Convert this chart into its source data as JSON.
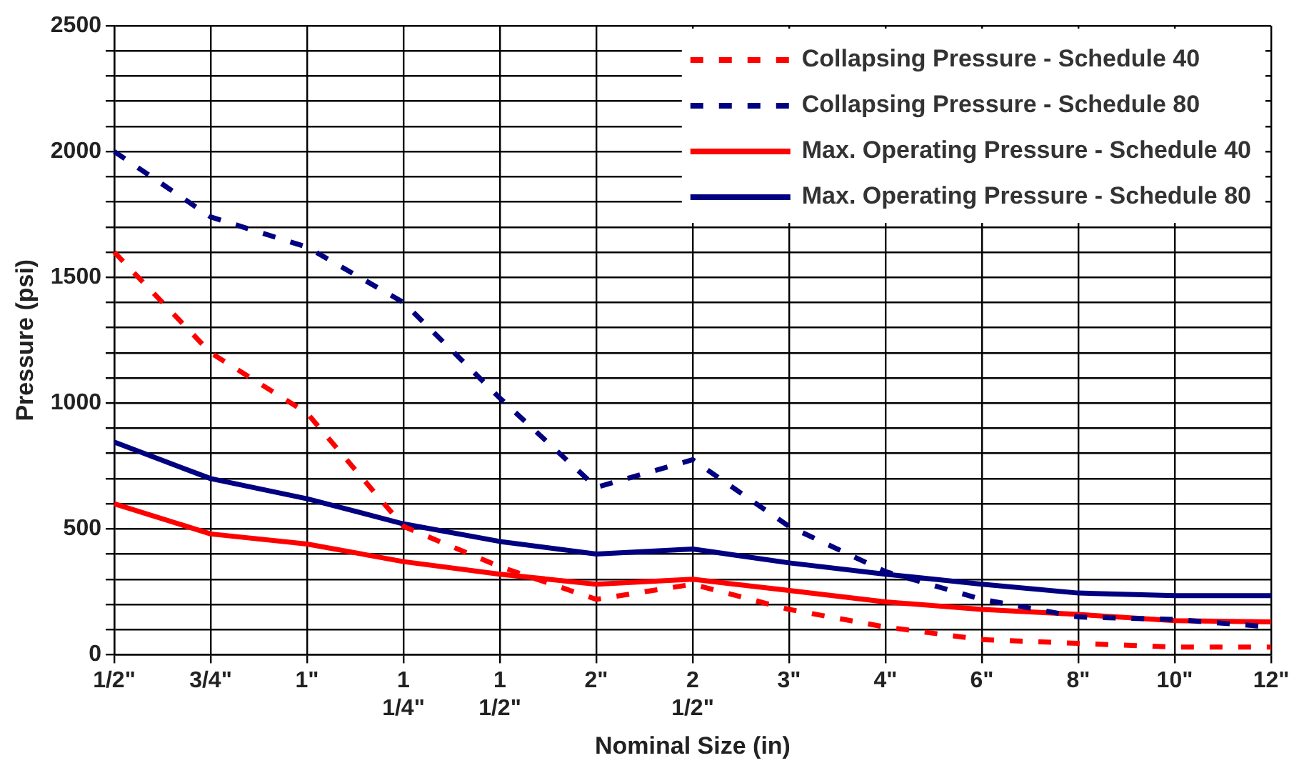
{
  "chart_data": {
    "type": "line",
    "xlabel": "Nominal Size (in)",
    "ylabel": "Pressure (psi)",
    "categories": [
      "1/2\"",
      "3/4\"",
      "1\"",
      "1 1/4\"",
      "1 1/2\"",
      "2\"",
      "2 1/2\"",
      "3\"",
      "4\"",
      "6\"",
      "8\"",
      "10\"",
      "12\""
    ],
    "series": [
      {
        "name": "Collapsing Pressure - Schedule 40",
        "color": "#ff0000",
        "line_style": "dashed",
        "values": [
          1600,
          1200,
          960,
          510,
          350,
          220,
          280,
          180,
          110,
          60,
          45,
          30,
          30
        ]
      },
      {
        "name": "Collapsing Pressure - Schedule 80",
        "color": "#000080",
        "line_style": "dashed",
        "values": [
          2000,
          1740,
          1620,
          1400,
          1020,
          665,
          775,
          510,
          330,
          220,
          150,
          140,
          110
        ]
      },
      {
        "name": "Max. Operating Pressure - Schedule 40",
        "color": "#ff0000",
        "line_style": "solid",
        "values": [
          600,
          480,
          440,
          370,
          320,
          280,
          300,
          255,
          210,
          180,
          160,
          135,
          130
        ]
      },
      {
        "name": "Max. Operating Pressure - Schedule 80",
        "color": "#000080",
        "line_style": "solid",
        "values": [
          845,
          700,
          620,
          520,
          450,
          400,
          420,
          365,
          320,
          280,
          245,
          235,
          235
        ]
      }
    ],
    "ylim": [
      0,
      2500
    ],
    "yticks": [
      0,
      {
        "value": 100,
        "label": null
      },
      {
        "value": 200,
        "label": null
      },
      {
        "value": 300,
        "label": null
      },
      {
        "value": 400,
        "label": null
      },
      500,
      {
        "value": 600,
        "label": null
      },
      {
        "value": 700,
        "label": null
      },
      {
        "value": 800,
        "label": null
      },
      {
        "value": 900,
        "label": null
      },
      1000,
      {
        "value": 1100,
        "label": null
      },
      {
        "value": 1200,
        "label": null
      },
      {
        "value": 1300,
        "label": null
      },
      {
        "value": 1400,
        "label": null
      },
      1500,
      {
        "value": 1600,
        "label": null
      },
      {
        "value": 1700,
        "label": null
      },
      {
        "value": 1800,
        "label": null
      },
      {
        "value": 1900,
        "label": null
      },
      2000,
      {
        "value": 2100,
        "label": null
      },
      {
        "value": 2200,
        "label": null
      },
      {
        "value": 2300,
        "label": null
      },
      {
        "value": 2400,
        "label": null
      },
      2500
    ],
    "grid": true,
    "legend": "top right",
    "marker": "none"
  }
}
